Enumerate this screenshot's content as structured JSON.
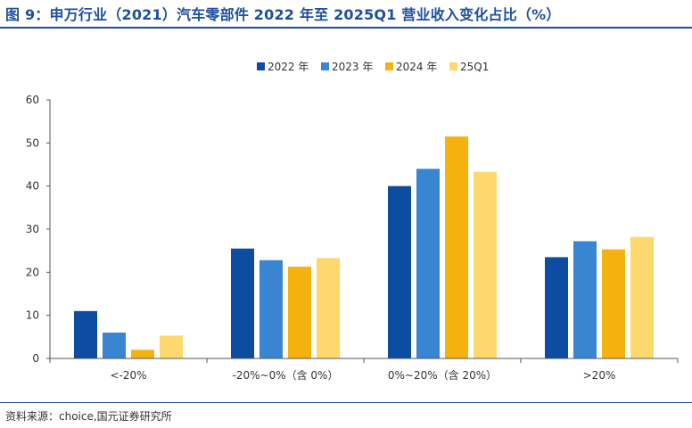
{
  "title": "图 9：申万行业（2021）汽车零部件 2022 年至 2025Q1 营业收入变化占比（%）",
  "source": "资料来源：choice,国元证券研究所",
  "chart_data": {
    "type": "bar",
    "categories": [
      "<-20%",
      "-20%~0%（含 0%）",
      "0%~20%（含 20%）",
      ">20%"
    ],
    "series": [
      {
        "name": "2022 年",
        "color": "#0d4da1",
        "values": [
          11,
          25.5,
          40,
          23.5
        ]
      },
      {
        "name": "2023 年",
        "color": "#3a85d2",
        "values": [
          6,
          22.8,
          44,
          27.2
        ]
      },
      {
        "name": "2024 年",
        "color": "#f5b10e",
        "values": [
          2,
          21.3,
          51.5,
          25.3
        ]
      },
      {
        "name": "25Q1",
        "color": "#fdd86c",
        "values": [
          5.3,
          23.3,
          43.3,
          28.2
        ]
      }
    ],
    "ylim": [
      0,
      60
    ],
    "yticks": [
      0,
      10,
      20,
      30,
      40,
      50,
      60
    ],
    "legend_position": "top-center",
    "grid": false
  }
}
